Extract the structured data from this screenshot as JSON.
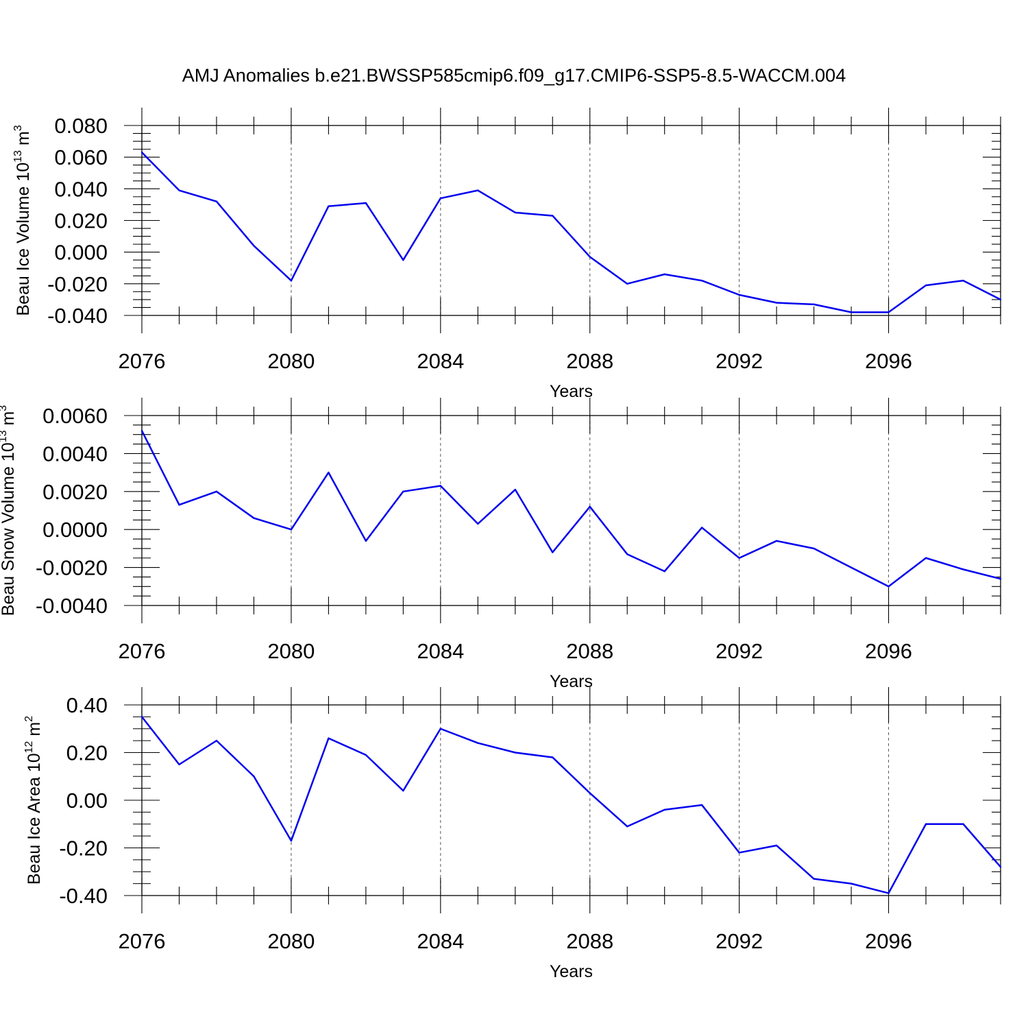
{
  "chart_data": {
    "title": "AMJ Anomalies b.e21.BWSSP585cmip6.f09_g17.CMIP6-SSP5-8.5-WACCM.004",
    "panels": [
      {
        "type": "line",
        "ylabel": "Beau Ice Volume 10",
        "ylabel_sup": "13",
        "ylabel_unit": " m",
        "ylabel_unit_sup": "3",
        "xlabel": "Years",
        "xlim": [
          2076,
          2099
        ],
        "ylim": [
          -0.04,
          0.08
        ],
        "yticks": [
          -0.04,
          -0.02,
          0.0,
          0.02,
          0.04,
          0.06,
          0.08
        ],
        "ytick_labels": [
          "-0.040",
          "-0.020",
          "0.000",
          "0.020",
          "0.040",
          "0.060",
          "0.080"
        ],
        "ymin_step": 0.005,
        "xticks": [
          2076,
          2080,
          2084,
          2088,
          2092,
          2096
        ],
        "xtick_labels": [
          "2076",
          "2080",
          "2084",
          "2088",
          "2092",
          "2096"
        ],
        "grid_x": [
          2080,
          2084,
          2088,
          2092,
          2096
        ],
        "series": [
          {
            "name": "Beau Ice Volume",
            "color": "#0000ee",
            "x": [
              2076,
              2077,
              2078,
              2079,
              2080,
              2081,
              2082,
              2083,
              2084,
              2085,
              2086,
              2087,
              2088,
              2089,
              2090,
              2091,
              2092,
              2093,
              2094,
              2095,
              2096,
              2097,
              2098,
              2099
            ],
            "values": [
              0.063,
              0.039,
              0.032,
              0.004,
              -0.018,
              0.029,
              0.031,
              -0.005,
              0.034,
              0.039,
              0.025,
              0.023,
              -0.003,
              -0.02,
              -0.014,
              -0.018,
              -0.027,
              -0.032,
              -0.033,
              -0.038,
              -0.038,
              -0.021,
              -0.018,
              -0.03
            ]
          }
        ]
      },
      {
        "type": "line",
        "ylabel": "Beau Snow Volume 10",
        "ylabel_sup": "13",
        "ylabel_unit": " m",
        "ylabel_unit_sup": "3",
        "xlabel": "Years",
        "xlim": [
          2076,
          2099
        ],
        "ylim": [
          -0.004,
          0.006
        ],
        "yticks": [
          -0.004,
          -0.002,
          0.0,
          0.002,
          0.004,
          0.006
        ],
        "ytick_labels": [
          "-0.0040",
          "-0.0020",
          "0.0000",
          "0.0020",
          "0.0040",
          "0.0060"
        ],
        "ymin_step": 0.0005,
        "xticks": [
          2076,
          2080,
          2084,
          2088,
          2092,
          2096
        ],
        "xtick_labels": [
          "2076",
          "2080",
          "2084",
          "2088",
          "2092",
          "2096"
        ],
        "grid_x": [
          2080,
          2084,
          2088,
          2092,
          2096
        ],
        "series": [
          {
            "name": "Beau Snow Volume",
            "color": "#0000ee",
            "x": [
              2076,
              2077,
              2078,
              2079,
              2080,
              2081,
              2082,
              2083,
              2084,
              2085,
              2086,
              2087,
              2088,
              2089,
              2090,
              2091,
              2092,
              2093,
              2094,
              2095,
              2096,
              2097,
              2098,
              2099
            ],
            "values": [
              0.0052,
              0.0013,
              0.002,
              0.0006,
              0.0,
              0.003,
              -0.0006,
              0.002,
              0.0023,
              0.0003,
              0.0021,
              -0.0012,
              0.0012,
              -0.0013,
              -0.0022,
              0.0001,
              -0.0015,
              -0.0006,
              -0.001,
              -0.002,
              -0.003,
              -0.0015,
              -0.0021,
              -0.0026
            ]
          }
        ]
      },
      {
        "type": "line",
        "ylabel": "Beau Ice Area 10",
        "ylabel_sup": "12",
        "ylabel_unit": " m",
        "ylabel_unit_sup": "2",
        "xlabel": "Years",
        "xlim": [
          2076,
          2099
        ],
        "ylim": [
          -0.4,
          0.4
        ],
        "yticks": [
          -0.4,
          -0.2,
          0.0,
          0.2,
          0.4
        ],
        "ytick_labels": [
          "-0.40",
          "-0.20",
          "0.00",
          "0.20",
          "0.40"
        ],
        "ymin_step": 0.05,
        "xticks": [
          2076,
          2080,
          2084,
          2088,
          2092,
          2096
        ],
        "xtick_labels": [
          "2076",
          "2080",
          "2084",
          "2088",
          "2092",
          "2096"
        ],
        "grid_x": [
          2080,
          2084,
          2088,
          2092,
          2096
        ],
        "series": [
          {
            "name": "Beau Ice Area",
            "color": "#0000ee",
            "x": [
              2076,
              2077,
              2078,
              2079,
              2080,
              2081,
              2082,
              2083,
              2084,
              2085,
              2086,
              2087,
              2088,
              2089,
              2090,
              2091,
              2092,
              2093,
              2094,
              2095,
              2096,
              2097,
              2098,
              2099
            ],
            "values": [
              0.35,
              0.15,
              0.25,
              0.1,
              -0.17,
              0.26,
              0.19,
              0.04,
              0.3,
              0.24,
              0.2,
              0.18,
              0.03,
              -0.11,
              -0.04,
              -0.02,
              -0.22,
              -0.19,
              -0.33,
              -0.35,
              -0.39,
              -0.1,
              -0.1,
              -0.28
            ]
          }
        ]
      }
    ]
  }
}
